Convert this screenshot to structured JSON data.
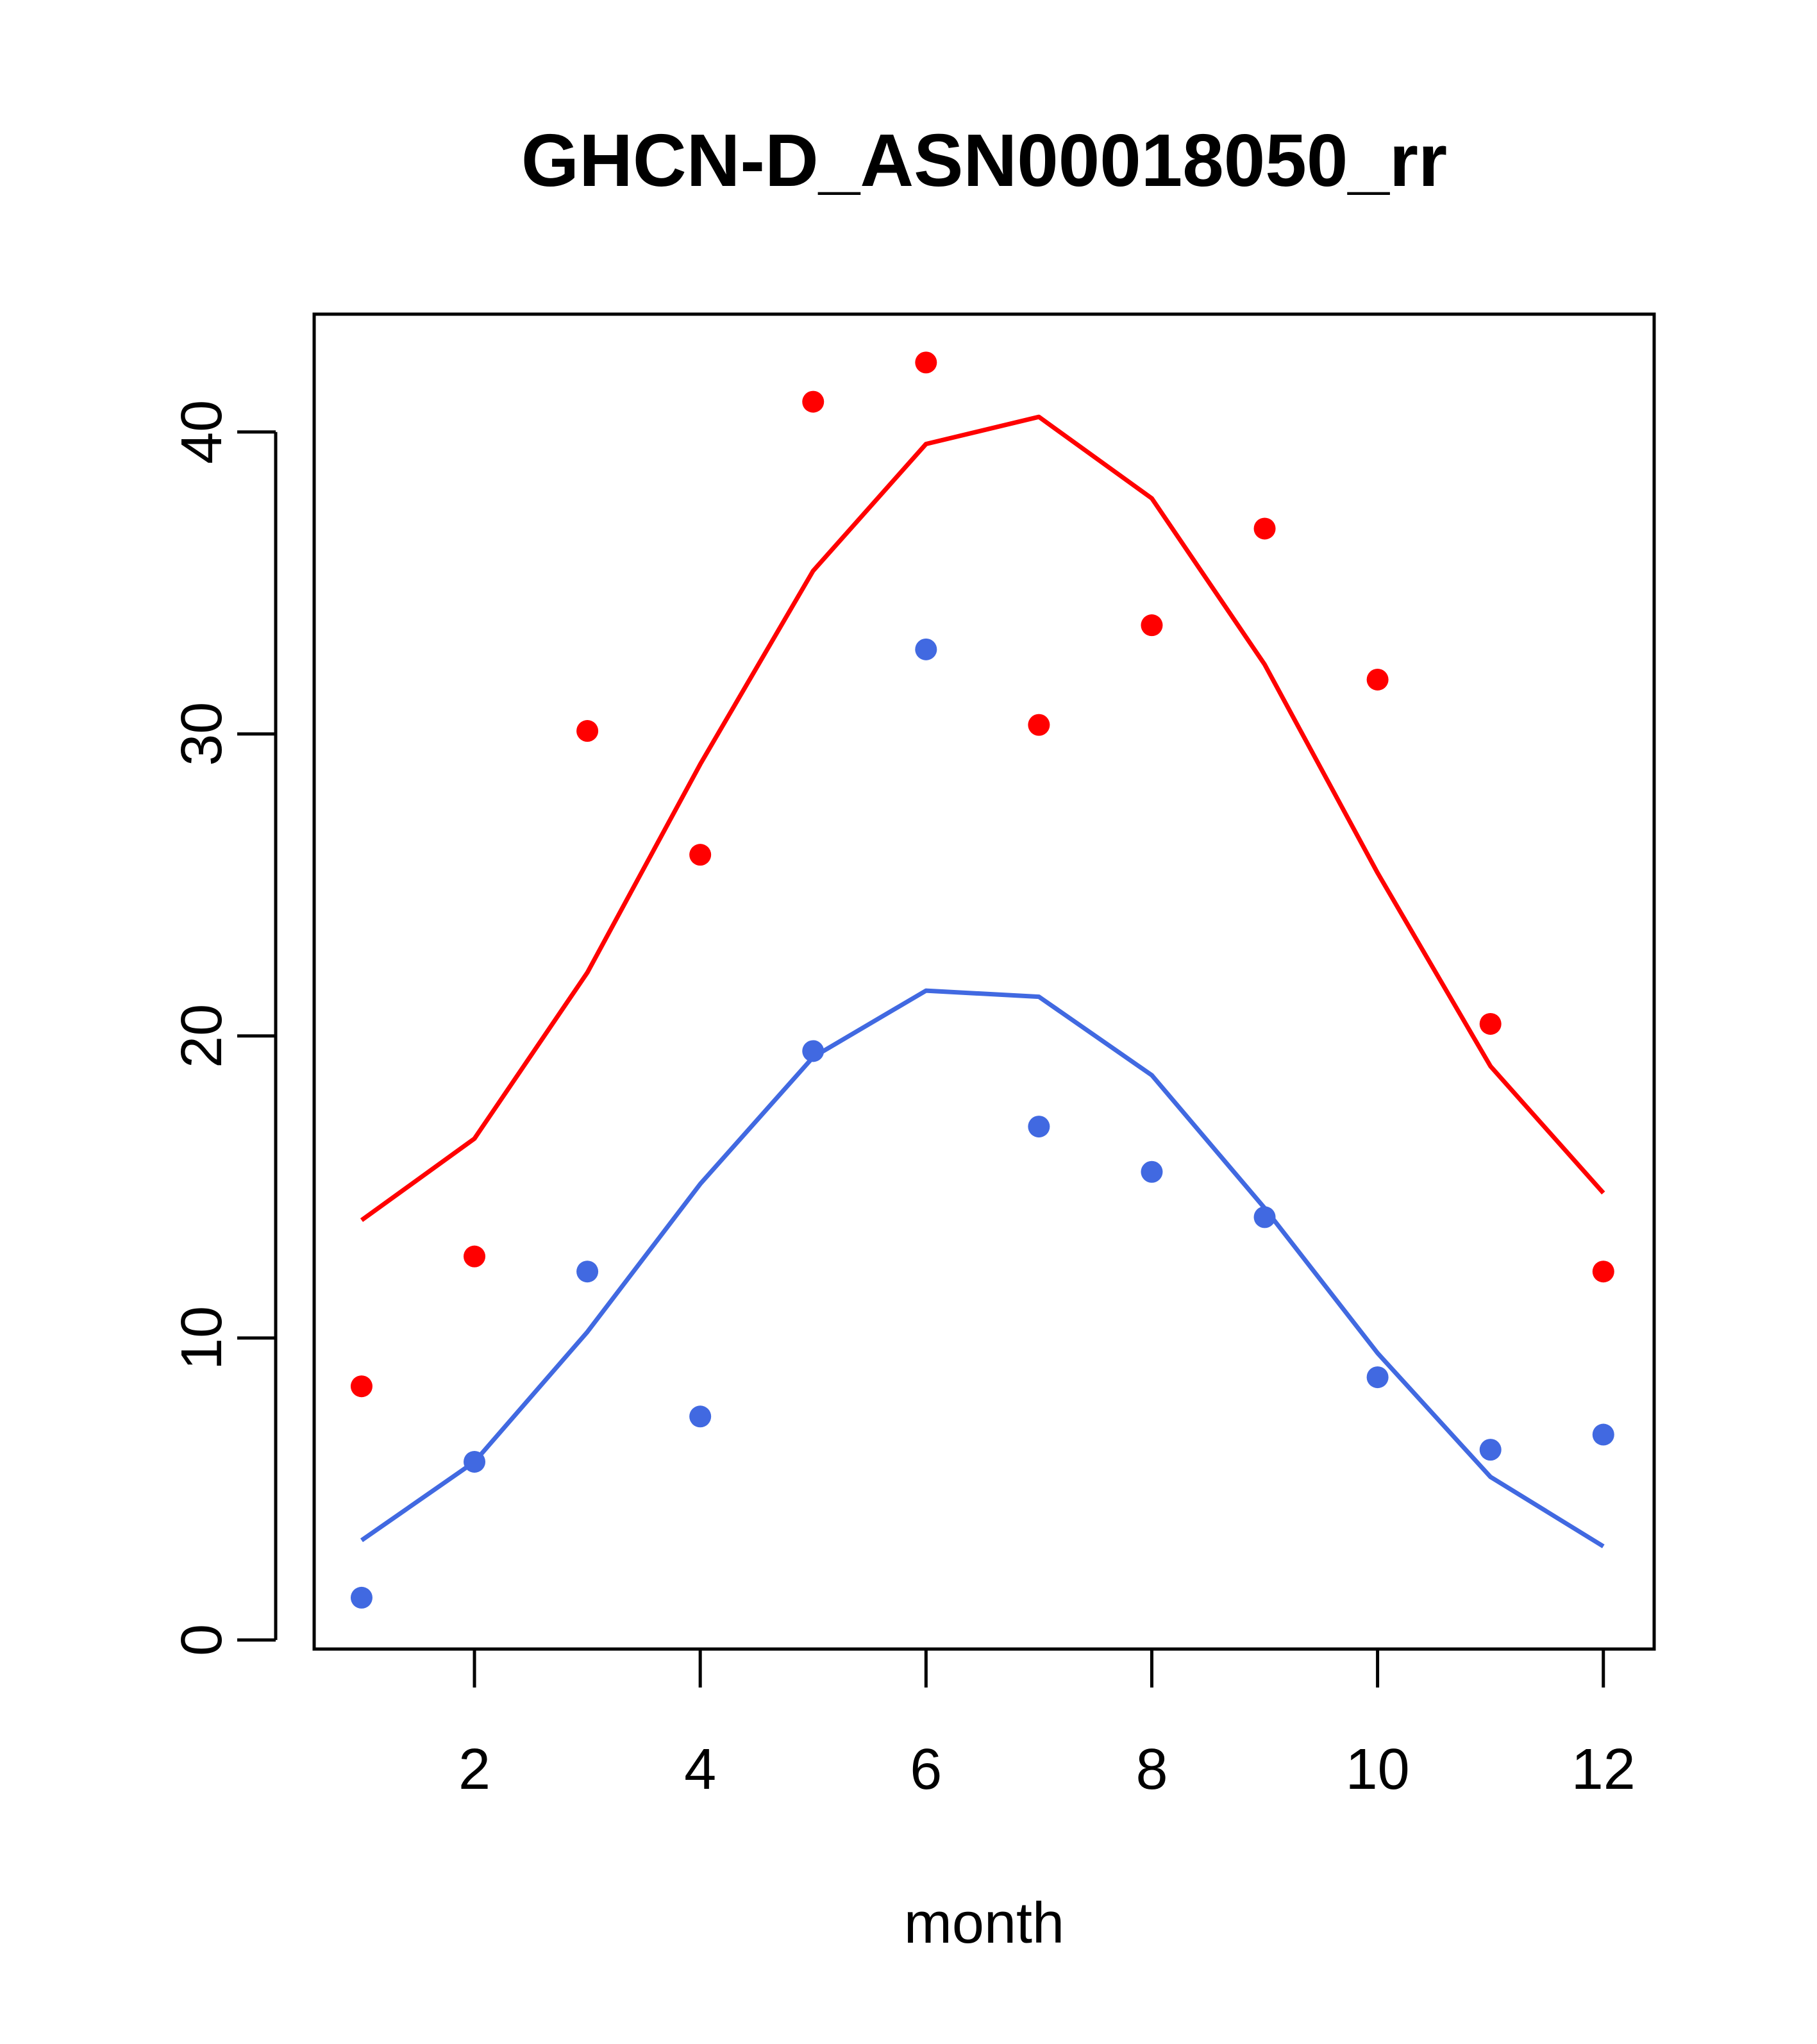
{
  "chart_data": {
    "type": "scatter",
    "title": "GHCN-D_ASN00018050_rr",
    "xlabel": "month",
    "ylabel": "",
    "xlim": [
      0.58,
      12.45
    ],
    "ylim": [
      -0.3,
      43.9
    ],
    "xticks": [
      2,
      4,
      6,
      8,
      10,
      12
    ],
    "yticks": [
      0,
      10,
      20,
      30,
      40
    ],
    "grid": false,
    "legend": "none",
    "series": [
      {
        "kind": "points",
        "color": "#ff0000",
        "x": [
          1,
          2,
          3,
          4,
          5,
          6,
          7,
          8,
          9,
          10,
          11,
          12
        ],
        "values": [
          8.4,
          12.7,
          30.1,
          26.0,
          41.0,
          42.3,
          30.3,
          33.6,
          36.8,
          31.8,
          20.4,
          12.2
        ]
      },
      {
        "kind": "line",
        "color": "#ff0000",
        "x": [
          1,
          2,
          3,
          4,
          5,
          6,
          7,
          8,
          9,
          10,
          11,
          12
        ],
        "values": [
          13.9,
          16.6,
          22.1,
          29.0,
          35.4,
          39.6,
          40.5,
          37.8,
          32.3,
          25.4,
          19.0,
          14.8
        ]
      },
      {
        "kind": "points",
        "color": "#4169e1",
        "x": [
          1,
          2,
          3,
          4,
          5,
          6,
          7,
          8,
          9,
          10,
          11,
          12
        ],
        "values": [
          1.4,
          5.9,
          12.2,
          7.4,
          19.5,
          32.8,
          17.0,
          15.5,
          14.0,
          8.7,
          6.3,
          6.8
        ]
      },
      {
        "kind": "line",
        "color": "#4169e1",
        "x": [
          1,
          2,
          3,
          4,
          5,
          6,
          7,
          8,
          9,
          10,
          11,
          12
        ],
        "values": [
          3.3,
          5.9,
          10.2,
          15.1,
          19.3,
          21.5,
          21.3,
          18.7,
          14.3,
          9.5,
          5.4,
          3.1
        ]
      }
    ]
  }
}
